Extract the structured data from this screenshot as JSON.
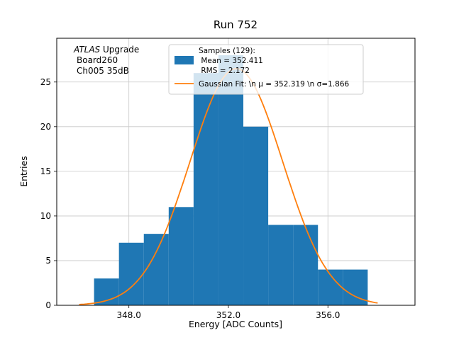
{
  "chart_data": {
    "type": "histogram",
    "title": "Run 752",
    "xlabel": "Energy [ADC Counts]",
    "ylabel": "Entries",
    "grid": true,
    "xlim": [
      345.1,
      359.5
    ],
    "ylim": [
      0,
      29.9
    ],
    "x_ticks": [
      {
        "v": 348.0,
        "label": "348.0"
      },
      {
        "v": 352.0,
        "label": "352.0"
      },
      {
        "v": 356.0,
        "label": "356.0"
      }
    ],
    "y_ticks": [
      {
        "v": 0,
        "label": "0"
      },
      {
        "v": 5,
        "label": "5"
      },
      {
        "v": 10,
        "label": "10"
      },
      {
        "v": 15,
        "label": "15"
      },
      {
        "v": 20,
        "label": "20"
      },
      {
        "v": 25,
        "label": "25"
      }
    ],
    "histogram": {
      "bin_start": 346.6,
      "bin_width": 1.0,
      "counts": [
        3,
        7,
        8,
        11,
        26,
        28,
        20,
        9,
        9,
        4,
        4
      ],
      "color": "#1f77b4"
    },
    "gaussian_fit": {
      "mu": 352.319,
      "sigma": 1.866,
      "amplitude": 26.5,
      "curve_x_min": 346.0,
      "curve_x_max": 358.0,
      "color": "#ff7f0e"
    },
    "stats": {
      "n_samples": 129,
      "mean": 352.411,
      "rms": 2.172
    },
    "legend": {
      "samples_lines": [
        "Samples (129):",
        " Mean = 352.411",
        " RMS = 2.172"
      ],
      "gaussian_label": "Gaussian Fit: \\n μ = 352.319 \\n σ=1.866"
    },
    "annotation": {
      "line1_italic": "ATLAS",
      "line1_rest": " Upgrade",
      "line2": "Board260",
      "line3": "Ch005 35dB"
    }
  }
}
